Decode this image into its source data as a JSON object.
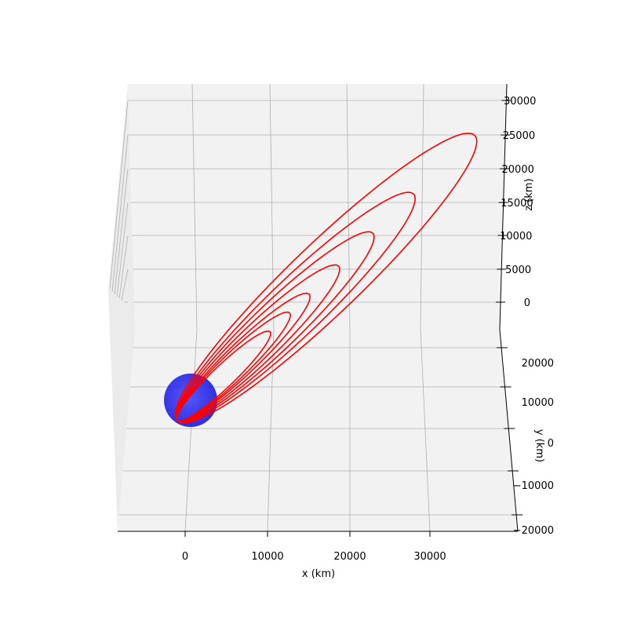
{
  "chart_data": {
    "type": "line",
    "projection": "3d",
    "xlabel": "x (km)",
    "ylabel": "y (km)",
    "zlabel": "z (km)",
    "x_ticks": [
      "0",
      "10000",
      "20000",
      "30000"
    ],
    "y_ticks": [
      "20000",
      "10000",
      "0",
      "−10000",
      "−20000"
    ],
    "z_ticks": [
      "30000",
      "25000",
      "20000",
      "15000",
      "10000",
      "5000",
      "0"
    ],
    "grid": true,
    "colors": {
      "orbit": "#ff0000",
      "planet": "#2222ee",
      "pane": "#f2f2f2",
      "grid": "#b0b0b0"
    },
    "planet": {
      "shape": "sphere",
      "label": ""
    },
    "series": [
      {
        "description": "spiralling orbit trajectory",
        "apoapsis_x_km_per_loop": [
          10400,
          12800,
          15200,
          18800,
          23000,
          28000,
          35500
        ]
      }
    ]
  }
}
